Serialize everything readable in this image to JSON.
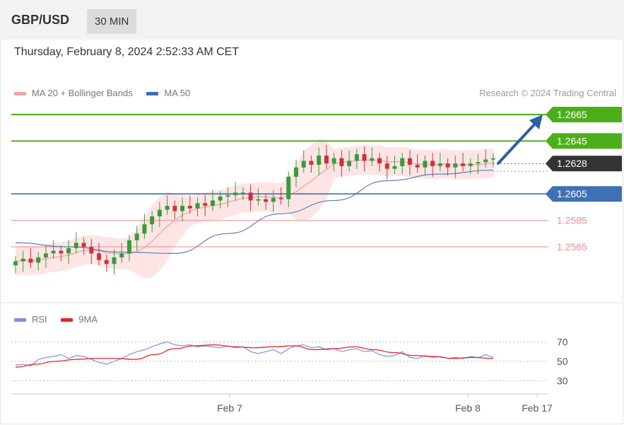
{
  "header": {
    "symbol": "GBP/USD",
    "timeframe": "30 MIN"
  },
  "timestamp": "Thursday, February 8, 2024 2:52:33 AM CET",
  "legend_main": [
    {
      "label": "MA 20 + Bollinger Bands",
      "color": "#f4a3a3"
    },
    {
      "label": "MA 50",
      "color": "#3f6fb5"
    }
  ],
  "legend_rsi": [
    {
      "label": "RSI",
      "color": "#7b93de"
    },
    {
      "label": "9MA",
      "color": "#e8232a"
    }
  ],
  "credit": "Research © 2024 Trading Central",
  "colors": {
    "resistance": "#4caf1a",
    "pivot": "#3f6fb5",
    "support": "#f28b8b",
    "current": "#333333",
    "bull_candle": "#3a9a3a",
    "bear_candle": "#c8353a",
    "arrow": "#2d5fa6"
  },
  "chart_data": {
    "type": "candlestick",
    "price_range": [
      1.2533,
      1.268
    ],
    "levels": [
      {
        "value": 1.2665,
        "label": "1.2665",
        "kind": "resistance"
      },
      {
        "value": 1.2645,
        "label": "1.2645",
        "kind": "resistance"
      },
      {
        "value": 1.2628,
        "label": "1.2628",
        "kind": "current"
      },
      {
        "value": 1.2605,
        "label": "1.2605",
        "kind": "pivot"
      },
      {
        "value": 1.2585,
        "label": "1.2585",
        "kind": "support"
      },
      {
        "value": 1.2565,
        "label": "1.2565",
        "kind": "support"
      }
    ],
    "x_ticks": [
      "Feb 7",
      "Feb 8",
      "Feb 17"
    ],
    "close_path": [
      1.2554,
      1.2556,
      1.2553,
      1.2557,
      1.256,
      1.2562,
      1.256,
      1.2564,
      1.2568,
      1.2565,
      1.256,
      1.2555,
      1.2552,
      1.2557,
      1.256,
      1.257,
      1.2575,
      1.2582,
      1.2588,
      1.2593,
      1.2596,
      1.2592,
      1.2596,
      1.2594,
      1.2598,
      1.2596,
      1.26,
      1.2603,
      1.2604,
      1.2606,
      1.2606,
      1.26,
      1.2601,
      1.2599,
      1.2602,
      1.2601,
      1.2618,
      1.2625,
      1.263,
      1.2627,
      1.2634,
      1.2628,
      1.2632,
      1.2626,
      1.263,
      1.2635,
      1.263,
      1.2632,
      1.2628,
      1.2624,
      1.2626,
      1.2632,
      1.2627,
      1.2625,
      1.263,
      1.2626,
      1.2628,
      1.2625,
      1.2628,
      1.2626,
      1.2628,
      1.2629,
      1.2631,
      1.2632
    ],
    "ma50": [
      1.2568,
      1.2565,
      1.2561,
      1.256,
      1.2575,
      1.259,
      1.26,
      1.2615,
      1.262,
      1.2623
    ],
    "rsi": {
      "ticks": [
        70,
        50,
        30
      ],
      "range": [
        22,
        78
      ],
      "rsi_values": [
        46,
        47,
        45,
        52,
        54,
        55,
        57,
        53,
        56,
        55,
        52,
        49,
        47,
        50,
        53,
        57,
        60,
        62,
        65,
        68,
        70,
        67,
        66,
        67,
        65,
        66,
        65,
        64,
        66,
        64,
        65,
        60,
        58,
        60,
        62,
        58,
        63,
        66,
        67,
        64,
        65,
        62,
        63,
        60,
        62,
        63,
        60,
        61,
        57,
        55,
        56,
        60,
        54,
        53,
        56,
        54,
        55,
        53,
        54,
        53,
        55,
        54,
        57,
        54
      ],
      "ma_values": [
        44,
        47,
        50,
        52,
        53,
        53,
        52,
        57,
        63,
        66,
        67,
        65,
        64,
        65,
        66,
        62,
        63,
        65,
        62,
        59,
        56,
        55,
        53,
        54,
        53
      ]
    }
  }
}
